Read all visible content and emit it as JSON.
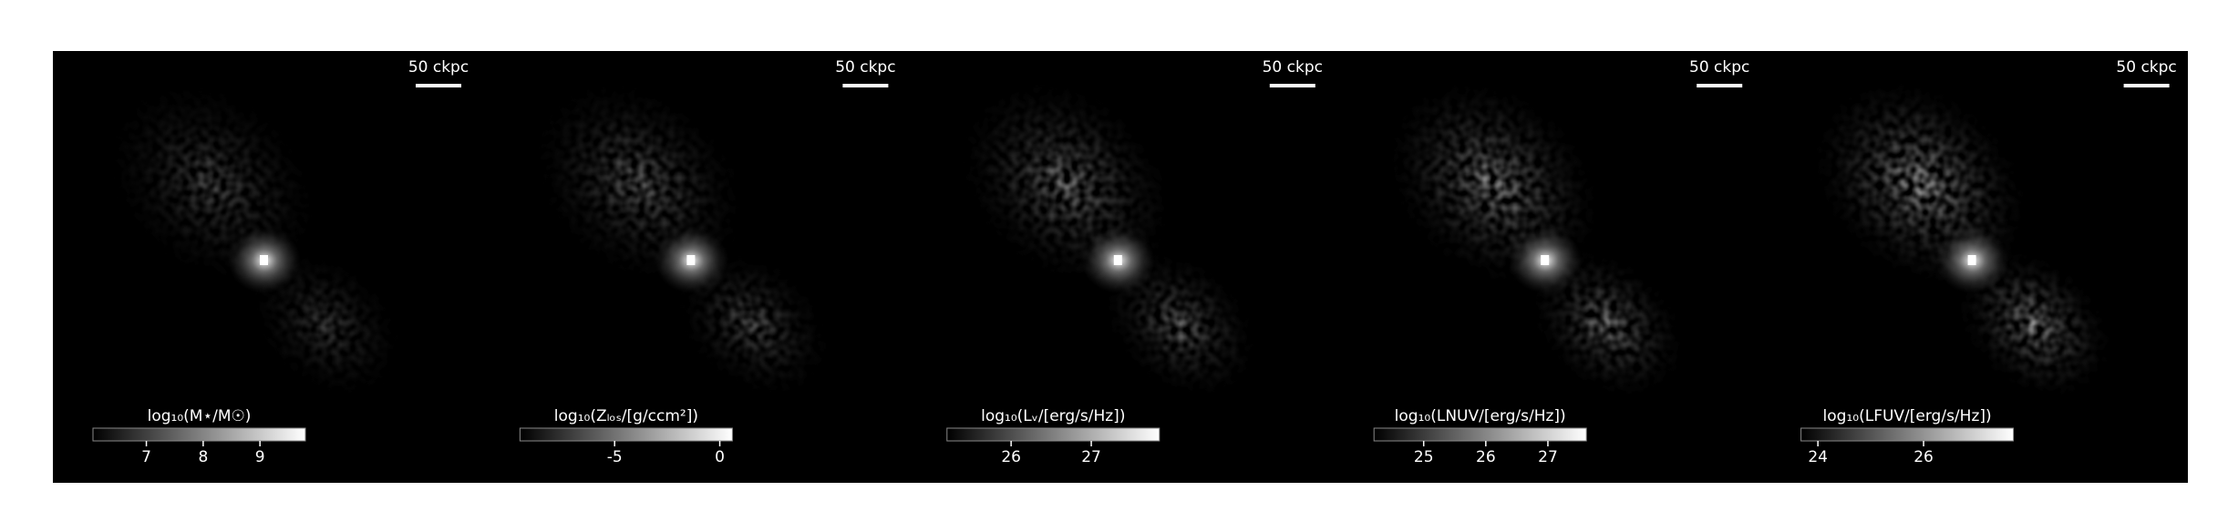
{
  "chart_data": [
    {
      "type": "image",
      "scale_bar": "50 ckpc",
      "colorbar_label": "log₁₀(M⋆/M☉)",
      "clim": [
        6.06,
        9.8
      ],
      "cticks": [
        7,
        8,
        9
      ]
    },
    {
      "type": "image",
      "scale_bar": "50 ckpc",
      "colorbar_label": "log₁₀(Zₗₒₛ/[g/ccm²])",
      "clim": [
        -9.5,
        0.6
      ],
      "cticks": [
        -5,
        0
      ]
    },
    {
      "type": "image",
      "scale_bar": "50 ckpc",
      "colorbar_label": "log₁₀(Lᵥ/[erg/s/Hz])",
      "clim": [
        25.2,
        27.85
      ],
      "cticks": [
        26,
        27
      ]
    },
    {
      "type": "image",
      "scale_bar": "50 ckpc",
      "colorbar_label": "log₁₀(LNUV/[erg/s/Hz])",
      "clim": [
        24.2,
        27.62
      ],
      "cticks": [
        25,
        26,
        27
      ]
    },
    {
      "type": "image",
      "scale_bar": "50 ckpc",
      "colorbar_label": "log₁₀(LFUV/[erg/s/Hz])",
      "clim": [
        23.68,
        27.7
      ],
      "cticks": [
        24,
        26
      ]
    }
  ]
}
